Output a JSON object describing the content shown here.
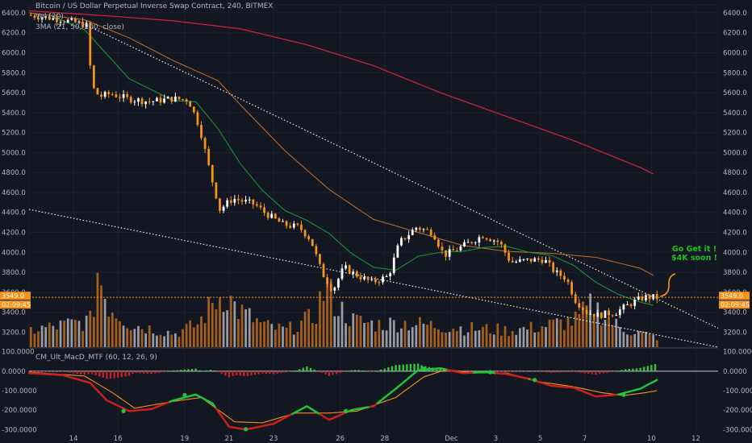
{
  "chart_data": {
    "type": "candlestick",
    "title": "Bitcoin / US Dollar Perpetual Inverse Swap Contract, 240, BITMEX",
    "volume_label": "Vol (20)",
    "ma_label": "3MA (21, 50, 200, close)",
    "annotation": [
      "Go Get it !",
      "$4K soon !"
    ],
    "last_price": "3549.0",
    "countdown": "02:09:45",
    "x_tick_labels": [
      "14",
      "16",
      "19",
      "21",
      "23",
      "26",
      "28",
      "Dec",
      "3",
      "5",
      "7",
      "10",
      "12"
    ],
    "x_tick_dates": [
      "2018-11-14",
      "2018-11-16",
      "2018-11-19",
      "2018-11-21",
      "2018-11-23",
      "2018-11-26",
      "2018-11-28",
      "2018-12-01",
      "2018-12-03",
      "2018-12-05",
      "2018-12-07",
      "2018-12-10",
      "2018-12-12"
    ],
    "price_axis_labels": [
      "6400.0",
      "6200.0",
      "6000.0",
      "5800.0",
      "5600.0",
      "5400.0",
      "5200.0",
      "5000.0",
      "4800.0",
      "4600.0",
      "4400.0",
      "4200.0",
      "4000.0",
      "3800.0",
      "3600.0",
      "3400.0",
      "3200.0"
    ],
    "price_range": [
      3050,
      6480
    ],
    "macd_label": "CM_Ult_MacD_MTF (60, 12, 26, 9)",
    "macd_axis_labels": [
      "100.0000",
      "0.0000",
      "-100.0000",
      "-200.0000",
      "-300.0000"
    ],
    "macd_range": [
      -315,
      115
    ],
    "colors": {
      "background": "#131722",
      "up_candle": "#ffffff",
      "down_candle": "#f7931a",
      "ma21": "#1a9e3a",
      "ma50": "#c8702a",
      "ma200": "#d3263a",
      "trendline": "#ffffff",
      "volume_up": "#9a9aa2",
      "volume_down": "#a55e1c",
      "macd_up": "#22c43a",
      "macd_down": "#cc1f1f",
      "signal": "#f7931a",
      "hist_up": "#35c43a",
      "hist_down": "#c2202a",
      "annotation": "#1ec21e",
      "price_line": "#f7931a"
    },
    "date_range": [
      "2018-11-12",
      "2018-12-13"
    ],
    "price_anchors": [
      [
        "2018-11-12T00:00",
        6378
      ],
      [
        "2018-11-13T12:00",
        6335
      ],
      [
        "2018-11-14T16:00",
        6275
      ],
      [
        "2018-11-14T22:00",
        5660
      ],
      [
        "2018-11-15T06:00",
        5560
      ],
      [
        "2018-11-15T18:00",
        5590
      ],
      [
        "2018-11-16T12:00",
        5540
      ],
      [
        "2018-11-17T12:00",
        5510
      ],
      [
        "2018-11-18T12:00",
        5540
      ],
      [
        "2018-11-19T06:00",
        5530
      ],
      [
        "2018-11-19T18:00",
        5260
      ],
      [
        "2018-11-20T06:00",
        4780
      ],
      [
        "2018-11-20T16:00",
        4430
      ],
      [
        "2018-11-21T06:00",
        4540
      ],
      [
        "2018-11-22T06:00",
        4480
      ],
      [
        "2018-11-22T16:00",
        4400
      ],
      [
        "2018-11-23T12:00",
        4280
      ],
      [
        "2018-11-24T06:00",
        4250
      ],
      [
        "2018-11-24T18:00",
        4130
      ],
      [
        "2018-11-25T06:00",
        3800
      ],
      [
        "2018-11-25T18:00",
        3620
      ],
      [
        "2018-11-26T06:00",
        3850
      ],
      [
        "2018-11-26T18:00",
        3780
      ],
      [
        "2018-11-27T12:00",
        3700
      ],
      [
        "2018-11-28T06:00",
        3760
      ],
      [
        "2018-11-28T18:00",
        4100
      ],
      [
        "2018-11-29T12:00",
        4250
      ],
      [
        "2018-11-30T06:00",
        4200
      ],
      [
        "2018-11-30T18:00",
        3970
      ],
      [
        "2018-12-01T12:00",
        4050
      ],
      [
        "2018-12-02T12:00",
        4170
      ],
      [
        "2018-12-03T06:00",
        4100
      ],
      [
        "2018-12-03T18:00",
        3900
      ],
      [
        "2018-12-04T12:00",
        3920
      ],
      [
        "2018-12-05T06:00",
        3930
      ],
      [
        "2018-12-05T18:00",
        3800
      ],
      [
        "2018-12-06T06:00",
        3740
      ],
      [
        "2018-12-06T16:00",
        3520
      ],
      [
        "2018-12-07T04:00",
        3400
      ],
      [
        "2018-12-07T16:00",
        3370
      ],
      [
        "2018-12-08T12:00",
        3400
      ],
      [
        "2018-12-09T06:00",
        3500
      ],
      [
        "2018-12-09T18:00",
        3550
      ],
      [
        "2018-12-10T06:00",
        3549
      ]
    ],
    "ma21_anchors": [
      [
        "2018-11-13T00:00",
        6370
      ],
      [
        "2018-11-14T12:00",
        6230
      ],
      [
        "2018-11-16T12:00",
        5740
      ],
      [
        "2018-11-18T12:00",
        5520
      ],
      [
        "2018-11-19T12:00",
        5510
      ],
      [
        "2018-11-20T12:00",
        5240
      ],
      [
        "2018-11-21T12:00",
        4890
      ],
      [
        "2018-11-22T12:00",
        4620
      ],
      [
        "2018-11-23T12:00",
        4420
      ],
      [
        "2018-11-24T12:00",
        4320
      ],
      [
        "2018-11-25T12:00",
        4190
      ],
      [
        "2018-11-26T12:00",
        3990
      ],
      [
        "2018-11-27T12:00",
        3850
      ],
      [
        "2018-11-28T12:00",
        3820
      ],
      [
        "2018-11-29T12:00",
        3960
      ],
      [
        "2018-11-30T12:00",
        4000
      ],
      [
        "2018-12-01T12:00",
        4010
      ],
      [
        "2018-12-02T12:00",
        4050
      ],
      [
        "2018-12-03T12:00",
        4060
      ],
      [
        "2018-12-04T12:00",
        4000
      ],
      [
        "2018-12-05T12:00",
        3970
      ],
      [
        "2018-12-06T12:00",
        3870
      ],
      [
        "2018-12-07T12:00",
        3700
      ],
      [
        "2018-12-08T12:00",
        3580
      ],
      [
        "2018-12-09T12:00",
        3500
      ],
      [
        "2018-12-10T02:00",
        3470
      ]
    ],
    "ma50_anchors": [
      [
        "2018-11-12T00:00",
        6400
      ],
      [
        "2018-11-14T12:00",
        6330
      ],
      [
        "2018-11-16T12:00",
        6150
      ],
      [
        "2018-11-18T12:00",
        5920
      ],
      [
        "2018-11-20T12:00",
        5720
      ],
      [
        "2018-11-21T12:00",
        5480
      ],
      [
        "2018-11-23T12:00",
        5020
      ],
      [
        "2018-11-25T12:00",
        4630
      ],
      [
        "2018-11-27T12:00",
        4330
      ],
      [
        "2018-11-29T12:00",
        4200
      ],
      [
        "2018-12-01T12:00",
        4070
      ],
      [
        "2018-12-03T12:00",
        4010
      ],
      [
        "2018-12-05T12:00",
        3990
      ],
      [
        "2018-12-07T12:00",
        3950
      ],
      [
        "2018-12-09T12:00",
        3840
      ],
      [
        "2018-12-10T02:00",
        3770
      ]
    ],
    "ma200_anchors": [
      [
        "2018-11-12T00:00",
        6420
      ],
      [
        "2018-11-15T12:00",
        6370
      ],
      [
        "2018-11-18T12:00",
        6320
      ],
      [
        "2018-11-21T12:00",
        6240
      ],
      [
        "2018-11-24T12:00",
        6080
      ],
      [
        "2018-11-27T12:00",
        5870
      ],
      [
        "2018-11-30T12:00",
        5600
      ],
      [
        "2018-12-03T12:00",
        5360
      ],
      [
        "2018-12-06T12:00",
        5120
      ],
      [
        "2018-12-09T12:00",
        4850
      ],
      [
        "2018-12-10T02:00",
        4785
      ]
    ],
    "trendlines": [
      {
        "from": [
          "2018-11-14T20:00",
          6250
        ],
        "to": [
          "2018-12-13T00:00",
          3240
        ]
      },
      {
        "from": [
          "2018-11-12T00:00",
          4430
        ],
        "to": [
          "2018-12-13T00:00",
          3050
        ]
      }
    ],
    "macd_anchors": [
      [
        "2018-11-12T00:00",
        -10
      ],
      [
        "2018-11-13T12:00",
        -20
      ],
      [
        "2018-11-14T18:00",
        -60
      ],
      [
        "2018-11-15T12:00",
        -150
      ],
      [
        "2018-11-16T12:00",
        -205
      ],
      [
        "2018-11-17T12:00",
        -195
      ],
      [
        "2018-11-18T12:00",
        -150
      ],
      [
        "2018-11-19T12:00",
        -120
      ],
      [
        "2018-11-20T06:00",
        -165
      ],
      [
        "2018-11-21T00:00",
        -285
      ],
      [
        "2018-11-21T18:00",
        -300
      ],
      [
        "2018-11-23T00:00",
        -270
      ],
      [
        "2018-11-24T12:00",
        -180
      ],
      [
        "2018-11-25T12:00",
        -250
      ],
      [
        "2018-11-26T12:00",
        -200
      ],
      [
        "2018-11-27T12:00",
        -180
      ],
      [
        "2018-11-28T12:00",
        -90
      ],
      [
        "2018-11-29T12:00",
        5
      ],
      [
        "2018-11-30T12:00",
        15
      ],
      [
        "2018-12-01T12:00",
        -10
      ],
      [
        "2018-12-02T12:00",
        -5
      ],
      [
        "2018-12-03T12:00",
        -15
      ],
      [
        "2018-12-04T12:00",
        -40
      ],
      [
        "2018-12-05T12:00",
        -75
      ],
      [
        "2018-12-06T12:00",
        -85
      ],
      [
        "2018-12-07T12:00",
        -130
      ],
      [
        "2018-12-08T12:00",
        -120
      ],
      [
        "2018-12-09T12:00",
        -90
      ],
      [
        "2018-12-10T06:00",
        -45
      ]
    ],
    "signal_anchors": [
      [
        "2018-11-12T00:00",
        -5
      ],
      [
        "2018-11-14T12:00",
        -25
      ],
      [
        "2018-11-15T18:00",
        -110
      ],
      [
        "2018-11-16T18:00",
        -190
      ],
      [
        "2018-11-18T12:00",
        -155
      ],
      [
        "2018-11-19T18:00",
        -135
      ],
      [
        "2018-11-21T06:00",
        -260
      ],
      [
        "2018-11-22T12:00",
        -265
      ],
      [
        "2018-11-24T00:00",
        -215
      ],
      [
        "2018-11-25T12:00",
        -215
      ],
      [
        "2018-11-26T18:00",
        -205
      ],
      [
        "2018-11-28T12:00",
        -135
      ],
      [
        "2018-11-29T18:00",
        -30
      ],
      [
        "2018-11-30T18:00",
        8
      ],
      [
        "2018-12-02T00:00",
        -8
      ],
      [
        "2018-12-03T12:00",
        -10
      ],
      [
        "2018-12-05T00:00",
        -55
      ],
      [
        "2018-12-06T12:00",
        -80
      ],
      [
        "2018-12-07T18:00",
        -110
      ],
      [
        "2018-12-08T18:00",
        -125
      ],
      [
        "2018-12-09T18:00",
        -110
      ],
      [
        "2018-12-10T06:00",
        -100
      ]
    ],
    "macd_dots": [
      [
        "2018-11-16T06:00",
        -205
      ],
      [
        "2018-11-19T00:00",
        -122
      ],
      [
        "2018-11-21T18:00",
        -298
      ],
      [
        "2018-11-26T06:00",
        -205
      ],
      [
        "2018-11-29T18:00",
        12
      ],
      [
        "2018-12-02T18:00",
        -5
      ],
      [
        "2018-12-04T18:00",
        -45
      ],
      [
        "2018-12-08T18:00",
        -122
      ]
    ],
    "volume_profile": [
      [
        "2018-11-12T00:00",
        0.22
      ],
      [
        "2018-11-14T18:00",
        0.35
      ],
      [
        "2018-11-15T00:00",
        1.0
      ],
      [
        "2018-11-15T12:00",
        0.55
      ],
      [
        "2018-11-16T12:00",
        0.3
      ],
      [
        "2018-11-18T12:00",
        0.18
      ],
      [
        "2018-11-19T12:00",
        0.3
      ],
      [
        "2018-11-20T06:00",
        0.6
      ],
      [
        "2018-11-20T18:00",
        0.72
      ],
      [
        "2018-11-21T06:00",
        0.5
      ],
      [
        "2018-11-22T12:00",
        0.28
      ],
      [
        "2018-11-23T12:00",
        0.22
      ],
      [
        "2018-11-24T18:00",
        0.4
      ],
      [
        "2018-11-25T06:00",
        0.8
      ],
      [
        "2018-11-25T18:00",
        0.55
      ],
      [
        "2018-11-26T12:00",
        0.35
      ],
      [
        "2018-11-27T12:00",
        0.3
      ],
      [
        "2018-11-28T18:00",
        0.32
      ],
      [
        "2018-11-29T12:00",
        0.3
      ],
      [
        "2018-12-01T12:00",
        0.25
      ],
      [
        "2018-12-03T12:00",
        0.22
      ],
      [
        "2018-12-04T12:00",
        0.25
      ],
      [
        "2018-12-06T12:00",
        0.35
      ],
      [
        "2018-12-07T06:00",
        0.55
      ],
      [
        "2018-12-08T12:00",
        0.25
      ],
      [
        "2018-12-09T12:00",
        0.18
      ],
      [
        "2018-12-10T06:00",
        0.12
      ]
    ]
  }
}
